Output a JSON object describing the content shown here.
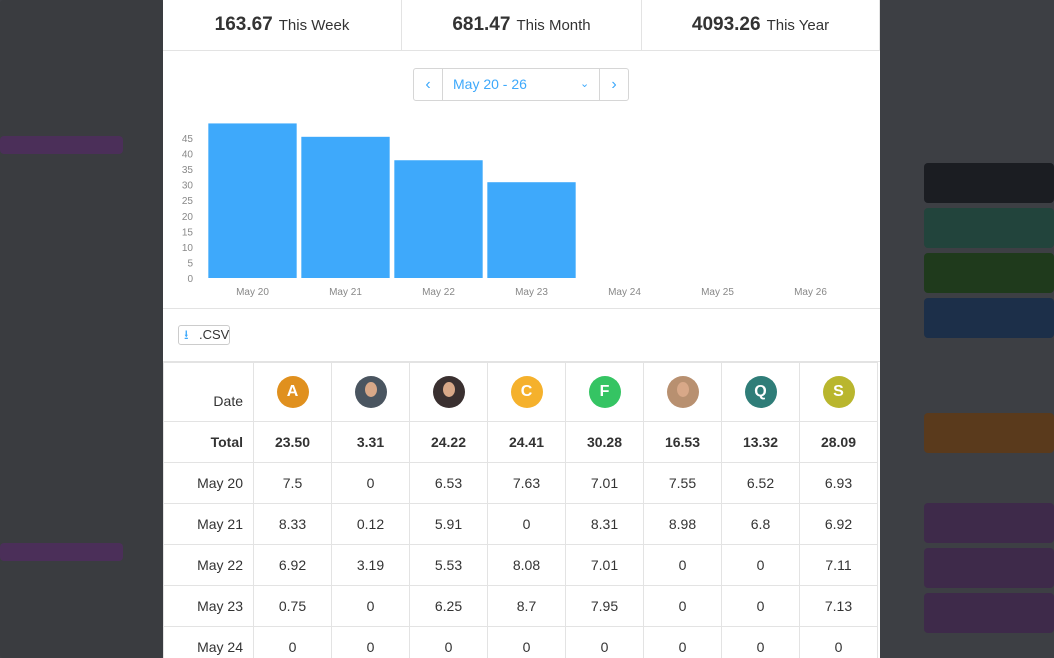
{
  "stats": [
    {
      "value": "163.67",
      "label": "This Week"
    },
    {
      "value": "681.47",
      "label": "This Month"
    },
    {
      "value": "4093.26",
      "label": "This Year"
    }
  ],
  "date_range": "May 20 - 26",
  "chart_data": {
    "type": "bar",
    "categories": [
      "May 20",
      "May 21",
      "May 22",
      "May 23",
      "May 24",
      "May 25",
      "May 26"
    ],
    "values": [
      49.67,
      45.37,
      37.84,
      30.78,
      0,
      0,
      0
    ],
    "color": "#3ea9fb",
    "ylim": [
      0,
      50
    ],
    "yticks": [
      0,
      5,
      10,
      15,
      20,
      25,
      30,
      35,
      40,
      45
    ]
  },
  "csv_button": ".CSV",
  "table": {
    "header": "Date",
    "avatar_letters": [
      "A",
      "C",
      "F",
      "Q",
      "S"
    ],
    "rows": [
      [
        "Total",
        "23.50",
        "3.31",
        "24.22",
        "24.41",
        "30.28",
        "16.53",
        "13.32",
        "28.09"
      ],
      [
        "May 20",
        "7.5",
        "0",
        "6.53",
        "7.63",
        "7.01",
        "7.55",
        "6.52",
        "6.93"
      ],
      [
        "May 21",
        "8.33",
        "0.12",
        "5.91",
        "0",
        "8.31",
        "8.98",
        "6.8",
        "6.92"
      ],
      [
        "May 22",
        "6.92",
        "3.19",
        "5.53",
        "8.08",
        "7.01",
        "0",
        "0",
        "7.11"
      ],
      [
        "May 23",
        "0.75",
        "0",
        "6.25",
        "8.7",
        "7.95",
        "0",
        "0",
        "7.13"
      ],
      [
        "May 24",
        "0",
        "0",
        "0",
        "0",
        "0",
        "0",
        "0",
        "0"
      ]
    ]
  }
}
